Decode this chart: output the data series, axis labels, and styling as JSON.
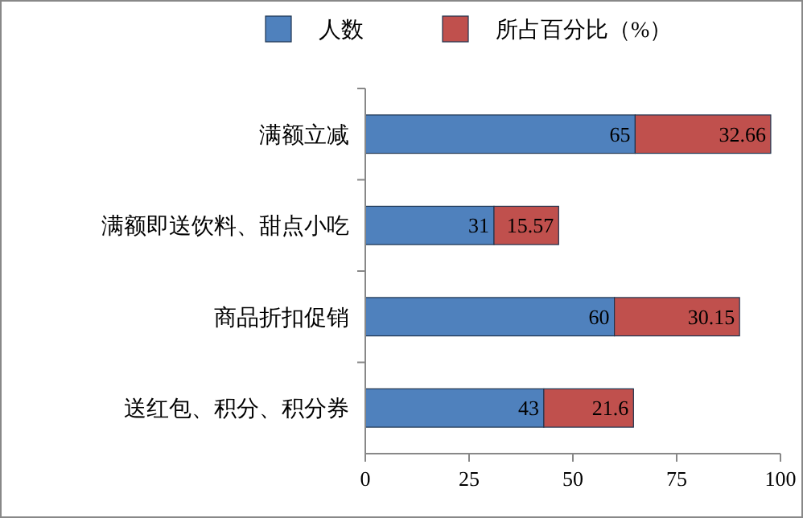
{
  "chart_data": {
    "type": "bar",
    "orientation": "horizontal",
    "stacked": true,
    "categories": [
      "满额立减",
      "满额即送饮料、甜点小吃",
      "商品折扣促销",
      "送红包、积分、积分券"
    ],
    "series": [
      {
        "name": "人数",
        "color": "#4f81bd",
        "values": [
          65,
          31,
          60,
          43
        ]
      },
      {
        "name": "所占百分比（%）",
        "color": "#c0504d",
        "values": [
          32.66,
          15.57,
          30.15,
          21.6
        ]
      }
    ],
    "xlim": [
      0,
      100
    ],
    "xticks": [
      0,
      25,
      50,
      75,
      100
    ],
    "grid": false,
    "legend": "top",
    "data_labels": true
  }
}
